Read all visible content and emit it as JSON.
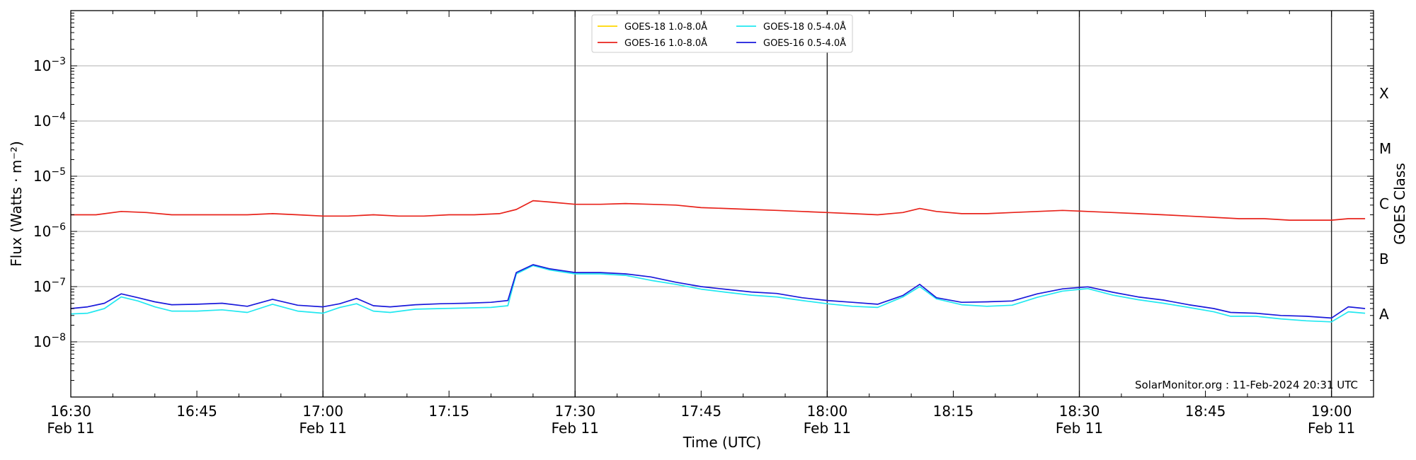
{
  "chart_data": {
    "type": "line",
    "xlabel": "Time (UTC)",
    "ylabel": "Flux (Watts · m⁻²)",
    "ylabel_right": "GOES Class",
    "credit": "SolarMonitor.org : 11-Feb-2024 20:31 UTC",
    "y_scale": "log",
    "ylim": [
      1e-09,
      0.01
    ],
    "xlim": [
      "16:30",
      "19:05"
    ],
    "grid": "horizontal",
    "legend_position": "top-center",
    "x_ticks": [
      {
        "time": "16:30",
        "label": "16:30",
        "date": "Feb 11"
      },
      {
        "time": "16:45",
        "label": "16:45",
        "date": ""
      },
      {
        "time": "17:00",
        "label": "17:00",
        "date": "Feb 11"
      },
      {
        "time": "17:15",
        "label": "17:15",
        "date": ""
      },
      {
        "time": "17:30",
        "label": "17:30",
        "date": "Feb 11"
      },
      {
        "time": "17:45",
        "label": "17:45",
        "date": ""
      },
      {
        "time": "18:00",
        "label": "18:00",
        "date": "Feb 11"
      },
      {
        "time": "18:15",
        "label": "18:15",
        "date": ""
      },
      {
        "time": "18:30",
        "label": "18:30",
        "date": "Feb 11"
      },
      {
        "time": "18:45",
        "label": "18:45",
        "date": ""
      },
      {
        "time": "19:00",
        "label": "19:00",
        "date": "Feb 11"
      }
    ],
    "y_ticks": [
      {
        "value": 1e-08,
        "base": "10",
        "exp": "−8"
      },
      {
        "value": 1e-07,
        "base": "10",
        "exp": "−7"
      },
      {
        "value": 1e-06,
        "base": "10",
        "exp": "−6"
      },
      {
        "value": 1e-05,
        "base": "10",
        "exp": "−5"
      },
      {
        "value": 0.0001,
        "base": "10",
        "exp": "−4"
      },
      {
        "value": 0.001,
        "base": "10",
        "exp": "−3"
      }
    ],
    "goes_classes": [
      {
        "label": "A",
        "value": 3.16e-08
      },
      {
        "label": "B",
        "value": 3.16e-07
      },
      {
        "label": "C",
        "value": 3.16e-06
      },
      {
        "label": "M",
        "value": 3.16e-05
      },
      {
        "label": "X",
        "value": 0.000316
      }
    ],
    "vertical_lines": [
      "17:00",
      "17:30",
      "18:00",
      "18:30",
      "19:00"
    ],
    "series": [
      {
        "name": "GOES-18 1.0-8.0Å",
        "color": "#ffd700",
        "x": [],
        "values": []
      },
      {
        "name": "GOES-16 1.0-8.0Å",
        "color": "#e8231b",
        "x": [
          "16:30",
          "16:33",
          "16:36",
          "16:39",
          "16:42",
          "16:45",
          "16:48",
          "16:51",
          "16:54",
          "16:57",
          "17:00",
          "17:03",
          "17:06",
          "17:09",
          "17:12",
          "17:15",
          "17:18",
          "17:21",
          "17:23",
          "17:25",
          "17:27",
          "17:30",
          "17:33",
          "17:36",
          "17:39",
          "17:42",
          "17:45",
          "17:48",
          "17:51",
          "17:54",
          "17:57",
          "18:00",
          "18:03",
          "18:06",
          "18:09",
          "18:11",
          "18:13",
          "18:16",
          "18:19",
          "18:22",
          "18:25",
          "18:28",
          "18:31",
          "18:34",
          "18:37",
          "18:40",
          "18:43",
          "18:46",
          "18:49",
          "18:52",
          "18:55",
          "18:58",
          "19:00",
          "19:02",
          "19:04"
        ],
        "values": [
          2e-06,
          2e-06,
          2.3e-06,
          2.2e-06,
          2e-06,
          2e-06,
          2e-06,
          2e-06,
          2.1e-06,
          2e-06,
          1.9e-06,
          1.9e-06,
          2e-06,
          1.9e-06,
          1.9e-06,
          2e-06,
          2e-06,
          2.1e-06,
          2.5e-06,
          3.6e-06,
          3.4e-06,
          3.1e-06,
          3.1e-06,
          3.2e-06,
          3.1e-06,
          3e-06,
          2.7e-06,
          2.6e-06,
          2.5e-06,
          2.4e-06,
          2.3e-06,
          2.2e-06,
          2.1e-06,
          2e-06,
          2.2e-06,
          2.6e-06,
          2.3e-06,
          2.1e-06,
          2.1e-06,
          2.2e-06,
          2.3e-06,
          2.4e-06,
          2.3e-06,
          2.2e-06,
          2.1e-06,
          2e-06,
          1.9e-06,
          1.8e-06,
          1.7e-06,
          1.7e-06,
          1.6e-06,
          1.6e-06,
          1.6e-06,
          1.7e-06,
          1.7e-06
        ]
      },
      {
        "name": "GOES-18 0.5-4.0Å",
        "color": "#22e8f0",
        "x": [
          "16:30",
          "16:32",
          "16:34",
          "16:36",
          "16:38",
          "16:40",
          "16:42",
          "16:45",
          "16:48",
          "16:51",
          "16:54",
          "16:57",
          "17:00",
          "17:02",
          "17:04",
          "17:06",
          "17:08",
          "17:11",
          "17:14",
          "17:17",
          "17:20",
          "17:22",
          "17:23",
          "17:25",
          "17:27",
          "17:30",
          "17:33",
          "17:36",
          "17:39",
          "17:42",
          "17:45",
          "17:48",
          "17:51",
          "17:54",
          "17:57",
          "18:00",
          "18:03",
          "18:06",
          "18:09",
          "18:11",
          "18:13",
          "18:16",
          "18:19",
          "18:22",
          "18:25",
          "18:28",
          "18:31",
          "18:34",
          "18:37",
          "18:40",
          "18:43",
          "18:46",
          "18:48",
          "18:51",
          "18:54",
          "18:57",
          "19:00",
          "19:02",
          "19:04"
        ],
        "values": [
          3.2e-08,
          3.3e-08,
          4e-08,
          6.5e-08,
          5.5e-08,
          4.3e-08,
          3.6e-08,
          3.6e-08,
          3.8e-08,
          3.4e-08,
          4.8e-08,
          3.6e-08,
          3.3e-08,
          4.2e-08,
          4.9e-08,
          3.6e-08,
          3.4e-08,
          3.9e-08,
          4e-08,
          4.1e-08,
          4.2e-08,
          4.5e-08,
          1.7e-07,
          2.4e-07,
          2e-07,
          1.7e-07,
          1.7e-07,
          1.6e-07,
          1.3e-07,
          1.1e-07,
          9e-08,
          7.9e-08,
          7e-08,
          6.5e-08,
          5.6e-08,
          4.9e-08,
          4.4e-08,
          4.2e-08,
          6.5e-08,
          1e-07,
          6e-08,
          4.7e-08,
          4.4e-08,
          4.6e-08,
          6.4e-08,
          8.3e-08,
          9.2e-08,
          7e-08,
          5.8e-08,
          5e-08,
          4.2e-08,
          3.5e-08,
          2.9e-08,
          2.9e-08,
          2.6e-08,
          2.4e-08,
          2.3e-08,
          3.5e-08,
          3.3e-08
        ]
      },
      {
        "name": "GOES-16 0.5-4.0Å",
        "color": "#1a1adb",
        "x": [
          "16:30",
          "16:32",
          "16:34",
          "16:36",
          "16:38",
          "16:40",
          "16:42",
          "16:45",
          "16:48",
          "16:51",
          "16:54",
          "16:57",
          "17:00",
          "17:02",
          "17:04",
          "17:06",
          "17:08",
          "17:11",
          "17:14",
          "17:17",
          "17:20",
          "17:22",
          "17:23",
          "17:25",
          "17:27",
          "17:30",
          "17:33",
          "17:36",
          "17:39",
          "17:42",
          "17:45",
          "17:48",
          "17:51",
          "17:54",
          "17:57",
          "18:00",
          "18:03",
          "18:06",
          "18:09",
          "18:11",
          "18:13",
          "18:16",
          "18:19",
          "18:22",
          "18:25",
          "18:28",
          "18:31",
          "18:34",
          "18:37",
          "18:40",
          "18:43",
          "18:46",
          "18:48",
          "18:51",
          "18:54",
          "18:57",
          "19:00",
          "19:02",
          "19:04"
        ],
        "values": [
          4e-08,
          4.3e-08,
          5e-08,
          7.4e-08,
          6.3e-08,
          5.3e-08,
          4.7e-08,
          4.8e-08,
          5e-08,
          4.4e-08,
          5.9e-08,
          4.6e-08,
          4.3e-08,
          4.9e-08,
          6.1e-08,
          4.5e-08,
          4.3e-08,
          4.7e-08,
          4.9e-08,
          5e-08,
          5.2e-08,
          5.6e-08,
          1.8e-07,
          2.5e-07,
          2.1e-07,
          1.8e-07,
          1.8e-07,
          1.7e-07,
          1.5e-07,
          1.2e-07,
          1e-07,
          8.9e-08,
          8e-08,
          7.5e-08,
          6.3e-08,
          5.6e-08,
          5.2e-08,
          4.8e-08,
          6.9e-08,
          1.1e-07,
          6.3e-08,
          5.2e-08,
          5.3e-08,
          5.5e-08,
          7.4e-08,
          9.1e-08,
          9.9e-08,
          7.9e-08,
          6.5e-08,
          5.7e-08,
          4.7e-08,
          4e-08,
          3.4e-08,
          3.3e-08,
          3e-08,
          2.9e-08,
          2.7e-08,
          4.3e-08,
          4e-08
        ]
      }
    ]
  }
}
